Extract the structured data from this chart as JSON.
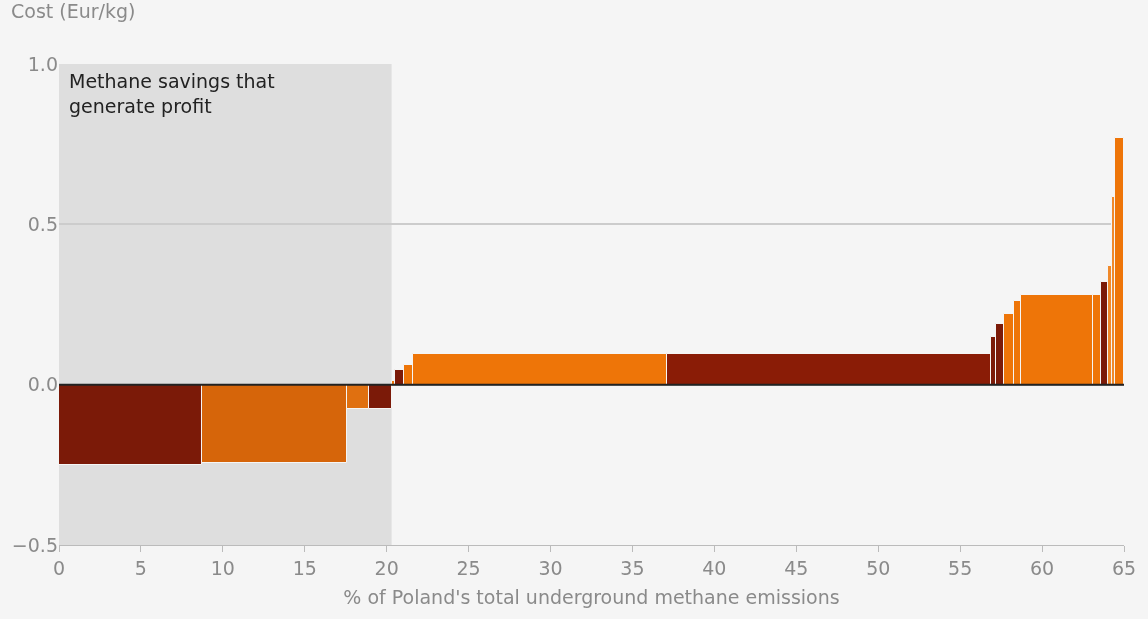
{
  "chart_data": {
    "type": "histogram",
    "ylabel": "Cost (Eur/kg)",
    "xlabel": "% of Poland's total underground methane emissions",
    "bins": [
      0,
      8.7,
      17.6,
      18.9,
      20.3,
      20.5,
      21.05,
      21.6,
      37.1,
      56.9,
      57.2,
      57.7,
      58.3,
      58.7,
      63.1,
      63.6,
      64.0,
      64.25,
      64.45,
      65
    ],
    "values": [
      -0.25,
      -0.245,
      -0.075,
      -0.075,
      0.01,
      0.045,
      0.06,
      0.095,
      0.095,
      0.15,
      0.19,
      0.22,
      0.26,
      0.28,
      0.28,
      0.32,
      0.37,
      0.585,
      0.77
    ],
    "colors": [
      "#7b1a08",
      "#d6650a",
      "#e07010",
      "#7b1a08",
      "#ee7508",
      "#7b1a08",
      "#ee7508",
      "#ee7508",
      "#8a1c06",
      "#7b1a08",
      "#7b1a08",
      "#ee7508",
      "#ee7508",
      "#ee7508",
      "#ee7508",
      "#7b1a08",
      "#f0892a",
      "#f0892a",
      "#ee7508"
    ],
    "xlim": [
      0,
      65
    ],
    "xticks": [
      0,
      5,
      10,
      15,
      20,
      25,
      30,
      35,
      40,
      45,
      50,
      55,
      60,
      65
    ],
    "ylim": [
      -0.5,
      1.0
    ],
    "yticks": [
      {
        "value": -0.5,
        "label": "−0.5"
      },
      {
        "value": 0,
        "label": "0.0"
      },
      {
        "value": 0.5,
        "label": "0.5"
      },
      {
        "value": 1.0,
        "label": "1.0"
      }
    ],
    "grid": "y",
    "bands": [
      {
        "axis": "x",
        "from": 0,
        "to": 20.3,
        "label": "Methane savings that generate profit",
        "color": "#dedede"
      }
    ],
    "ref_lines": [
      {
        "axis": "y",
        "value": 0,
        "color": "#222222"
      }
    ]
  }
}
